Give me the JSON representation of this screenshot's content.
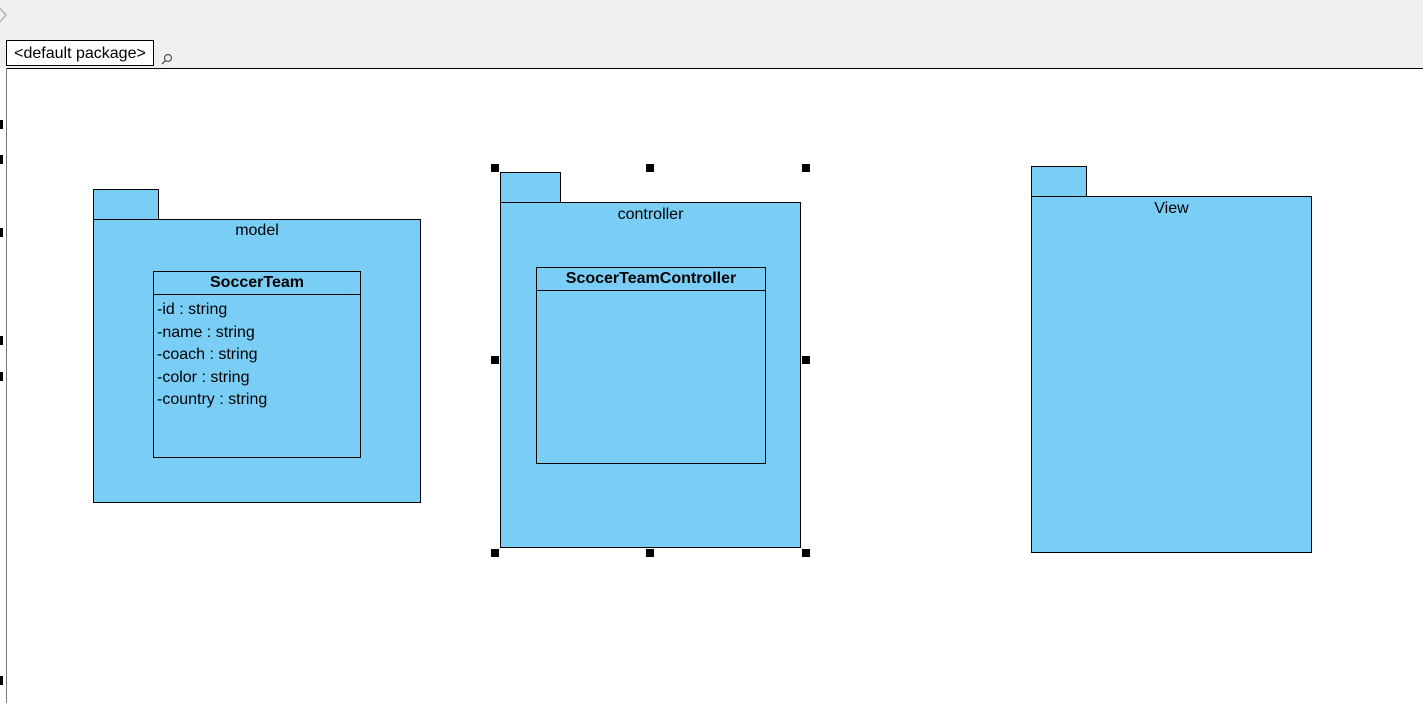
{
  "diagram": {
    "package_label": "<default package>",
    "packages": {
      "model": {
        "name": "model"
      },
      "controller": {
        "name": "controller"
      },
      "view": {
        "name": "View"
      }
    },
    "classes": {
      "soccer_team": {
        "name": "SoccerTeam",
        "attributes": [
          "-id : string",
          "-name : string",
          "-coach : string",
          "-color : string",
          "-country : string"
        ]
      },
      "controller_class": {
        "name": "ScocerTeamController"
      }
    },
    "selected": "controller"
  },
  "colors": {
    "package_fill": "#7acdf4",
    "toolbar_bg": "#f0f0f0",
    "canvas_bg": "#ffffff"
  }
}
